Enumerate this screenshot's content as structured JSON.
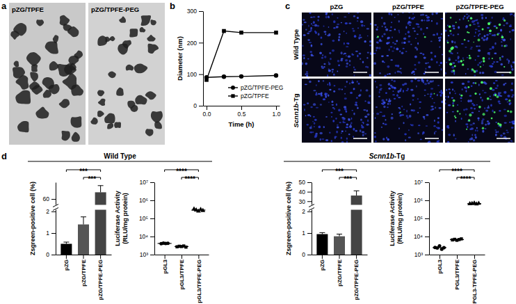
{
  "panel_labels": [
    "a",
    "b",
    "c",
    "d"
  ],
  "tem_images": {
    "labels": [
      "pZG/TPFE",
      "pZG/TPFE-PEG"
    ]
  },
  "fluorescence_images": {
    "columns": [
      "pZG",
      "pZG/TPFE",
      "pZG/TPFE-PEG"
    ],
    "rows": [
      "Wild Type",
      "Scnn1b-Tg"
    ]
  },
  "groups": [
    "Wild Type",
    "Scnn1b-Tg"
  ],
  "chart_data": [
    {
      "type": "line",
      "x_label": "Time (h)",
      "y_label": "Diameter (nm)",
      "x": [
        0,
        0.25,
        0.5,
        1
      ],
      "xlim": [
        -0.05,
        1.05
      ],
      "xticks": [
        {
          "value": 0,
          "label": "0.0"
        },
        {
          "value": 0.5,
          "label": "0.5"
        },
        {
          "value": 1,
          "label": "1.0"
        }
      ],
      "ylim": [
        0,
        300
      ],
      "yticks": [
        0,
        100,
        200,
        300
      ],
      "legend": "lower right",
      "series": [
        {
          "name": "pZG/TPFE-PEG",
          "color": "#000000",
          "marker": "circle",
          "values": [
            90,
            92,
            93,
            96
          ]
        },
        {
          "name": "pZG/TPFE",
          "color": "#000000",
          "marker": "square",
          "values": [
            82,
            237,
            232,
            232
          ]
        }
      ]
    },
    {
      "type": "bar",
      "y_label": "Zsgreen-positive cell (%)",
      "categories": [
        "pZG",
        "pZG/TPFE",
        "pZG/TPFE-PEG"
      ],
      "values": [
        0.5,
        1.4,
        68
      ],
      "errors": [
        0.08,
        0.35,
        8
      ],
      "colors": [
        "#000000",
        "#555555",
        "#444444"
      ],
      "ylim": [
        0,
        80
      ],
      "ybreak": [
        2,
        55
      ],
      "yticks": [
        0,
        1,
        2,
        60
      ],
      "significance": [
        {
          "from": 0,
          "to": 2,
          "label": "***"
        },
        {
          "from": 1,
          "to": 2,
          "label": "***"
        }
      ]
    },
    {
      "type": "scatter",
      "log": "y",
      "y_label": [
        "Luciferase Activity",
        "(RLU/mg protein)"
      ],
      "categories": [
        "pGL3",
        "pGL3/TPFE",
        "pGL3/TPFE-PEG"
      ],
      "values": [
        [
          4000,
          4300,
          4100,
          4200
        ],
        [
          2700,
          2900,
          2800,
          3000,
          2600
        ],
        [
          330000,
          290000,
          250000,
          310000,
          270000
        ]
      ],
      "means": [
        4150,
        2800,
        290000
      ],
      "ylim": [
        1000,
        10000000
      ],
      "yticks": [
        {
          "value": 1000,
          "label": "10³"
        },
        {
          "value": 10000,
          "label": "10⁴"
        },
        {
          "value": 100000,
          "label": "10⁵"
        },
        {
          "value": 1000000,
          "label": "10⁶"
        },
        {
          "value": 10000000,
          "label": "10⁷"
        }
      ],
      "significance": [
        {
          "from": 0,
          "to": 2,
          "label": "****"
        },
        {
          "from": 1,
          "to": 2,
          "label": "****"
        }
      ]
    },
    {
      "type": "bar",
      "y_label": "Zsgreen-positive cell (%)",
      "categories": [
        "pZG",
        "pZG/TPFE",
        "pZG/TPFE-PEG"
      ],
      "values": [
        0.95,
        0.85,
        36
      ],
      "errors": [
        0.07,
        0.1,
        5
      ],
      "colors": [
        "#000000",
        "#555555",
        "#444444"
      ],
      "ylim": [
        0,
        50
      ],
      "ybreak": [
        2,
        28
      ],
      "yticks": [
        0,
        1,
        2,
        30,
        40,
        50
      ],
      "significance": [
        {
          "from": 0,
          "to": 2,
          "label": "***"
        },
        {
          "from": 1,
          "to": 2,
          "label": "***"
        }
      ]
    },
    {
      "type": "scatter",
      "log": "y",
      "y_label": [
        "Luciferase Activity",
        "(RLU/mg protein)"
      ],
      "categories": [
        "pGL3",
        "PGL3/TPFE",
        "PGL3-TPFE-PEG"
      ],
      "values": [
        [
          2500,
          2300,
          3000,
          2000,
          2400
        ],
        [
          6500,
          7000,
          6200,
          6800,
          7400
        ],
        [
          640000,
          660000,
          700000,
          620000,
          680000
        ]
      ],
      "means": [
        2440,
        6780,
        660000
      ],
      "ylim": [
        1000,
        10000000
      ],
      "yticks": [
        {
          "value": 1000,
          "label": "10³"
        },
        {
          "value": 10000,
          "label": "10⁴"
        },
        {
          "value": 100000,
          "label": "10⁵"
        },
        {
          "value": 1000000,
          "label": "10⁶"
        },
        {
          "value": 10000000,
          "label": "10⁷"
        }
      ],
      "significance": [
        {
          "from": 0,
          "to": 2,
          "label": "****"
        },
        {
          "from": 1,
          "to": 2,
          "label": "****"
        }
      ]
    }
  ]
}
